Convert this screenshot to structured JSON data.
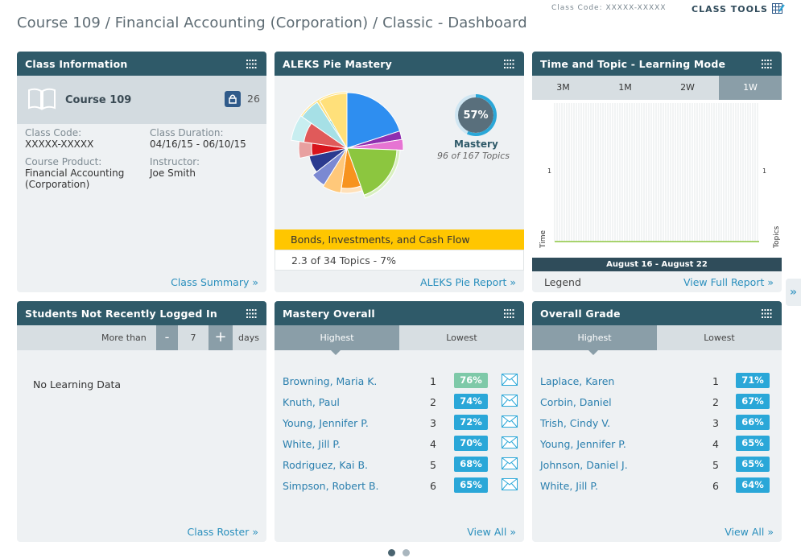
{
  "header": {
    "title": "Course 109 / Financial Accounting (Corporation) / Classic - Dashboard",
    "class_code": "Class Code: XXXXX-XXXXX",
    "class_tools": "CLASS TOOLS"
  },
  "class_info": {
    "title": "Class Information",
    "course": "Course 109",
    "student_count": "26",
    "code_label": "Class Code:",
    "code_value": "XXXXX-XXXXX",
    "duration_label": "Class Duration:",
    "duration_value": "04/16/15 - 06/10/15",
    "product_label": "Course Product:",
    "product_value_1": "Financial Accounting",
    "product_value_2": "(Corporation)",
    "instructor_label": "Instructor:",
    "instructor_value": "Joe Smith",
    "link": "Class Summary »"
  },
  "pie": {
    "title": "ALEKS Pie Mastery",
    "mastery_pct": "57%",
    "mastery_label": "Mastery",
    "mastery_sub": "96 of 167 Topics",
    "selected_slice": "Bonds, Investments, and Cash Flow",
    "selected_detail": "2.3 of 34 Topics - 7%",
    "link": "ALEKS Pie Report »",
    "colors": [
      "#2e8ef0",
      "#8e2fb0",
      "#e674d3",
      "#8cc63f",
      "#f7931e",
      "#ffc87a",
      "#7b89d2",
      "#2b3a8f",
      "#d8141c",
      "#e05a5a",
      "#a6e0e6",
      "#6fd0c9",
      "#ffe07a"
    ]
  },
  "time_topic": {
    "title": "Time and Topic - Learning Mode",
    "tabs": [
      "3M",
      "1M",
      "2W",
      "1W"
    ],
    "active_tab": "1W",
    "y_left": "1",
    "y_right": "1",
    "left_axis": "Time",
    "right_axis": "Topics",
    "range": "August 16 - August 22",
    "legend": "Legend",
    "link": "View Full Report »"
  },
  "not_logged": {
    "title": "Students Not Recently Logged In",
    "more_than": "More than",
    "minus": "-",
    "days_value": "7",
    "plus": "+",
    "days": "days",
    "empty": "No Learning Data",
    "link": "Class Roster »"
  },
  "mastery_overall": {
    "title": "Mastery Overall",
    "tab_high": "Highest",
    "tab_low": "Lowest",
    "rows": [
      {
        "name": "Browning, Maria K.",
        "rank": "1",
        "value": "76%"
      },
      {
        "name": "Knuth, Paul",
        "rank": "2",
        "value": "74%"
      },
      {
        "name": "Young, Jennifer P.",
        "rank": "3",
        "value": "72%"
      },
      {
        "name": "White, Jill P.",
        "rank": "4",
        "value": "70%"
      },
      {
        "name": "Rodriguez, Kai B.",
        "rank": "5",
        "value": "68%"
      },
      {
        "name": "Simpson, Robert B.",
        "rank": "6",
        "value": "65%"
      }
    ],
    "link": "View All »"
  },
  "overall_grade": {
    "title": "Overall Grade",
    "tab_high": "Highest",
    "tab_low": "Lowest",
    "rows": [
      {
        "name": "Laplace, Karen",
        "rank": "1",
        "value": "71%"
      },
      {
        "name": "Corbin, Daniel",
        "rank": "2",
        "value": "67%"
      },
      {
        "name": "Trish, Cindy V.",
        "rank": "3",
        "value": "66%"
      },
      {
        "name": "Young, Jennifer P.",
        "rank": "4",
        "value": "65%"
      },
      {
        "name": "Johnson, Daniel J.",
        "rank": "5",
        "value": "65%"
      },
      {
        "name": "White, Jill P.",
        "rank": "6",
        "value": "64%"
      }
    ],
    "link": "View All »"
  },
  "side_toggle": "»"
}
